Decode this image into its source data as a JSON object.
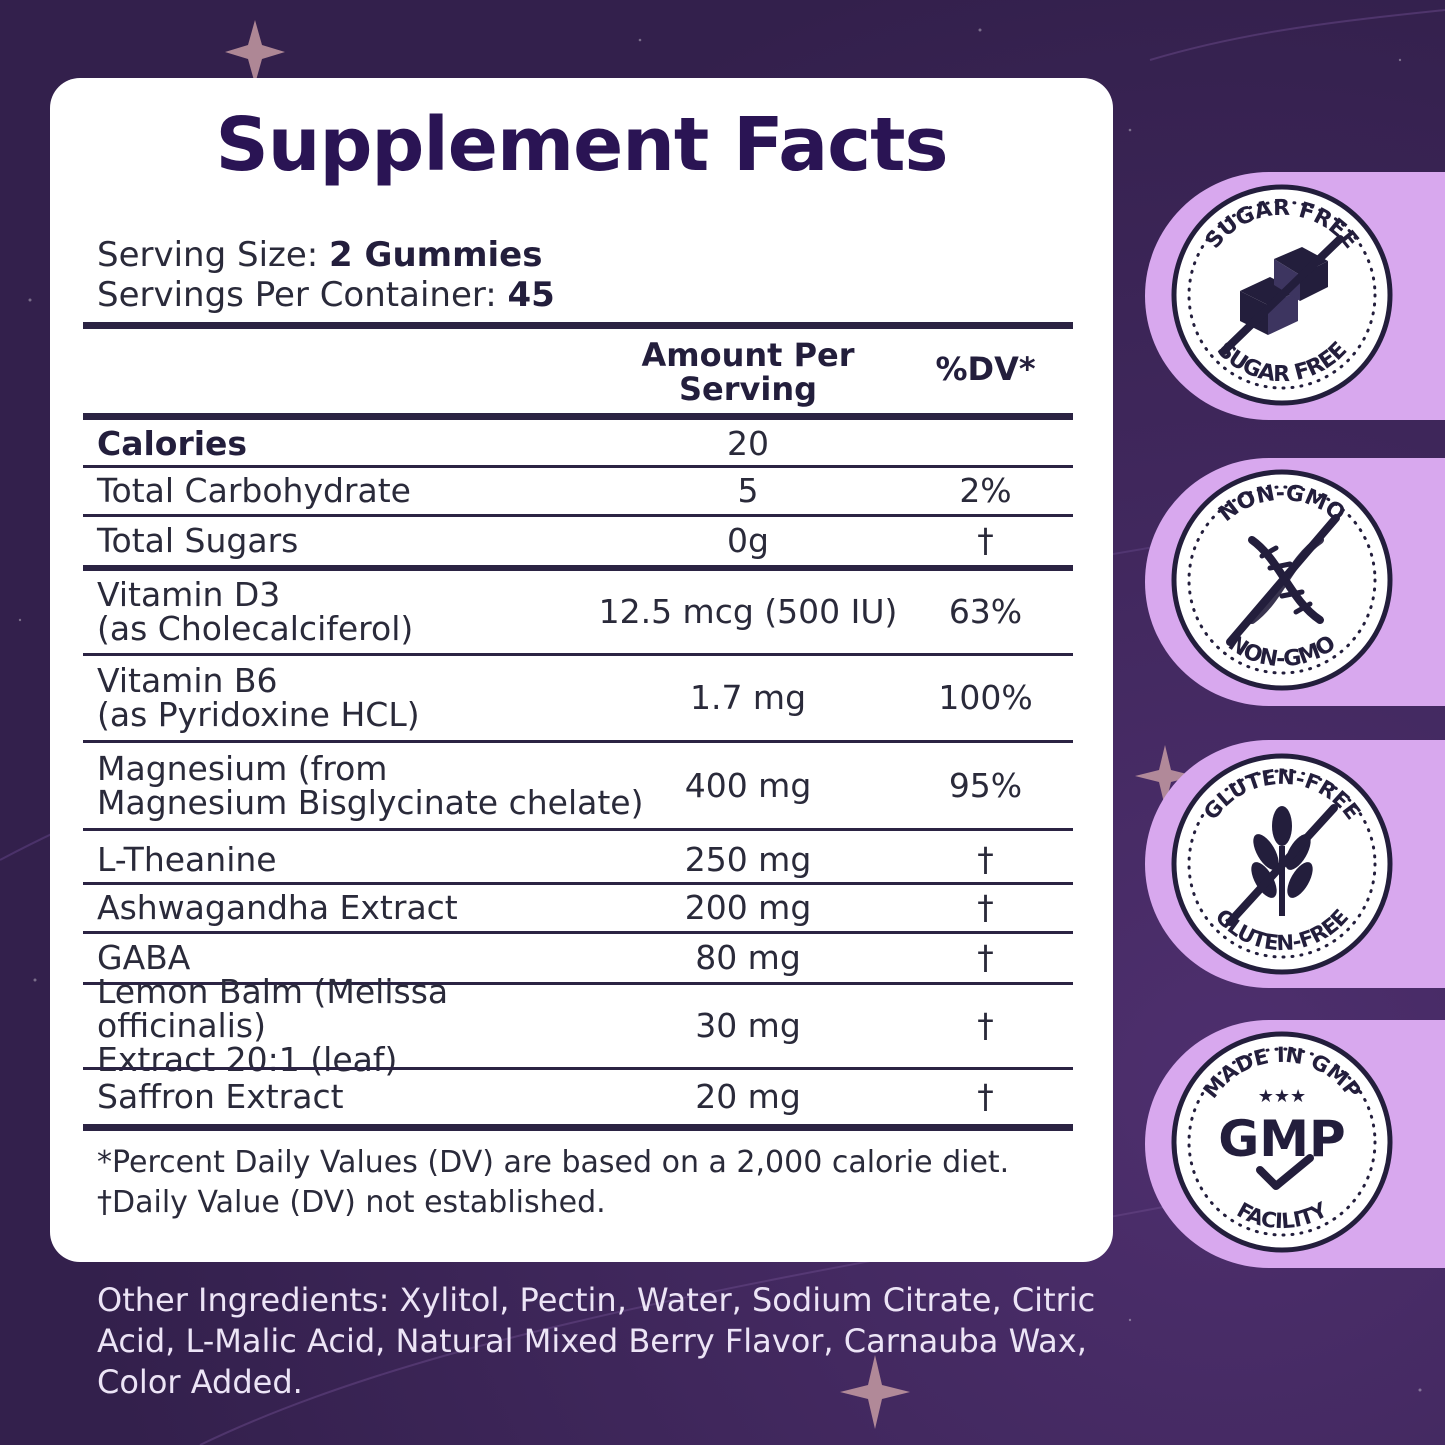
{
  "panel": {
    "title": "Supplement Facts",
    "serving_size_label": "Serving Size:",
    "serving_size_value": "2 Gummies",
    "servings_per_container_label": "Servings Per Container:",
    "servings_per_container_value": "45",
    "header": {
      "amount_line1": "Amount Per",
      "amount_line2": "Serving",
      "dv": "%DV*"
    },
    "rows": [
      {
        "name": "Calories",
        "amount": "20",
        "dv": ""
      },
      {
        "name": "Total Carbohydrate",
        "amount": "5",
        "dv": "2%"
      },
      {
        "name": "Total Sugars",
        "amount": "0g",
        "dv": "†"
      },
      {
        "name": "Vitamin D3",
        "name2": "(as Cholecalciferol)",
        "amount": "12.5 mcg (500 IU)",
        "dv": "63%"
      },
      {
        "name": "Vitamin B6",
        "name2": "(as Pyridoxine HCL)",
        "amount": "1.7 mg",
        "dv": "100%"
      },
      {
        "name": "Magnesium (from",
        "name2": "Magnesium Bisglycinate chelate)",
        "amount": "400 mg",
        "dv": "95%"
      },
      {
        "name": "L-Theanine",
        "amount": "250 mg",
        "dv": "†"
      },
      {
        "name": "Ashwagandha Extract",
        "amount": "200 mg",
        "dv": "†"
      },
      {
        "name": "GABA",
        "amount": "80 mg",
        "dv": "†"
      },
      {
        "name": "Lemon Balm (Melissa officinalis)",
        "name2": "Extract 20:1 (leaf)",
        "amount": "30 mg",
        "dv": "†"
      },
      {
        "name": "Saffron Extract",
        "amount": "20 mg",
        "dv": "†"
      }
    ],
    "footnote1": "*Percent Daily Values (DV) are based on a 2,000 calorie diet.",
    "footnote2": "†Daily Value (DV) not established."
  },
  "other_ingredients": {
    "line1": "Other Ingredients: Xylitol, Pectin, Water, Sodium Citrate, Citric",
    "line2": "Acid, L-Malic Acid, Natural Mixed Berry Flavor, Carnauba Wax,",
    "line3": "Color Added."
  },
  "badges": [
    {
      "icon": "sugar-cube-icon",
      "top_text": "SUGAR FREE",
      "bottom_text": "SUGAR FREE"
    },
    {
      "icon": "dna-icon",
      "top_text": "NON-GMO",
      "bottom_text": "NON-GMO"
    },
    {
      "icon": "wheat-icon",
      "top_text": "GLUTEN-FREE",
      "bottom_text": "GLUTEN-FREE"
    },
    {
      "icon": "gmp-check-icon",
      "top_text": "MADE IN GMP",
      "center_text": "GMP",
      "bottom_text": "FACILITY"
    }
  ],
  "colors": {
    "background": "#3b2256",
    "title": "#2a1454",
    "badge_tab": "#d8a8ee",
    "badge_ink": "#231e3c"
  }
}
